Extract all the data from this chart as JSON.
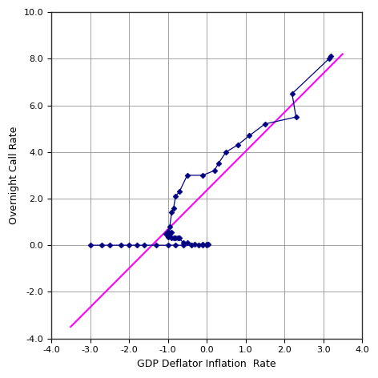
{
  "xlabel": "GDP Deflator Inflation  Rate",
  "ylabel": "Overnight Call Rate",
  "xlim": [
    -4.0,
    4.0
  ],
  "ylim": [
    -4.0,
    10.0
  ],
  "xticks": [
    -4.0,
    -3.0,
    -2.0,
    -1.0,
    0.0,
    1.0,
    2.0,
    3.0,
    4.0
  ],
  "yticks": [
    -4.0,
    -2.0,
    0.0,
    2.0,
    4.0,
    6.0,
    8.0,
    10.0
  ],
  "line_color": "#000080",
  "marker_color": "#000080",
  "trend_color": "#FF00FF",
  "background_color": "#FFFFFF",
  "grid_color": "#808080",
  "data_points": [
    [
      3.2,
      8.1
    ],
    [
      3.15,
      8.0
    ],
    [
      2.2,
      6.5
    ],
    [
      2.3,
      5.5
    ],
    [
      1.5,
      5.2
    ],
    [
      1.1,
      4.7
    ],
    [
      0.8,
      4.3
    ],
    [
      0.5,
      4.0
    ],
    [
      0.3,
      3.5
    ],
    [
      0.2,
      3.2
    ],
    [
      -0.1,
      3.0
    ],
    [
      -0.5,
      3.0
    ],
    [
      -0.7,
      2.3
    ],
    [
      -0.8,
      2.1
    ],
    [
      -0.85,
      1.6
    ],
    [
      -0.9,
      1.4
    ],
    [
      -0.95,
      0.8
    ],
    [
      -1.0,
      0.6
    ],
    [
      -0.9,
      0.55
    ],
    [
      -1.0,
      0.5
    ],
    [
      -1.05,
      0.5
    ],
    [
      -1.0,
      0.5
    ],
    [
      -0.95,
      0.5
    ],
    [
      -1.0,
      0.45
    ],
    [
      -1.0,
      0.4
    ],
    [
      -1.0,
      0.35
    ],
    [
      -0.9,
      0.3
    ],
    [
      -0.85,
      0.3
    ],
    [
      -0.8,
      0.3
    ],
    [
      -0.75,
      0.3
    ],
    [
      -0.7,
      0.3
    ],
    [
      -0.6,
      0.1
    ],
    [
      -0.5,
      0.1
    ],
    [
      -0.3,
      0.05
    ],
    [
      -0.1,
      0.05
    ],
    [
      0.0,
      0.05
    ],
    [
      0.05,
      0.05
    ],
    [
      0.0,
      0.0
    ],
    [
      -0.1,
      0.0
    ],
    [
      -0.2,
      0.0
    ],
    [
      -0.4,
      0.0
    ],
    [
      -0.6,
      0.0
    ],
    [
      -0.8,
      0.0
    ],
    [
      -1.0,
      0.0
    ],
    [
      -1.3,
      0.0
    ],
    [
      -1.6,
      0.0
    ],
    [
      -1.8,
      0.0
    ],
    [
      -2.0,
      0.0
    ],
    [
      -2.2,
      0.0
    ],
    [
      -2.5,
      0.0
    ],
    [
      -2.7,
      0.0
    ],
    [
      -3.0,
      0.0
    ]
  ],
  "trend_x": [
    -3.5,
    3.5
  ],
  "trend_y": [
    -3.5,
    8.2
  ]
}
